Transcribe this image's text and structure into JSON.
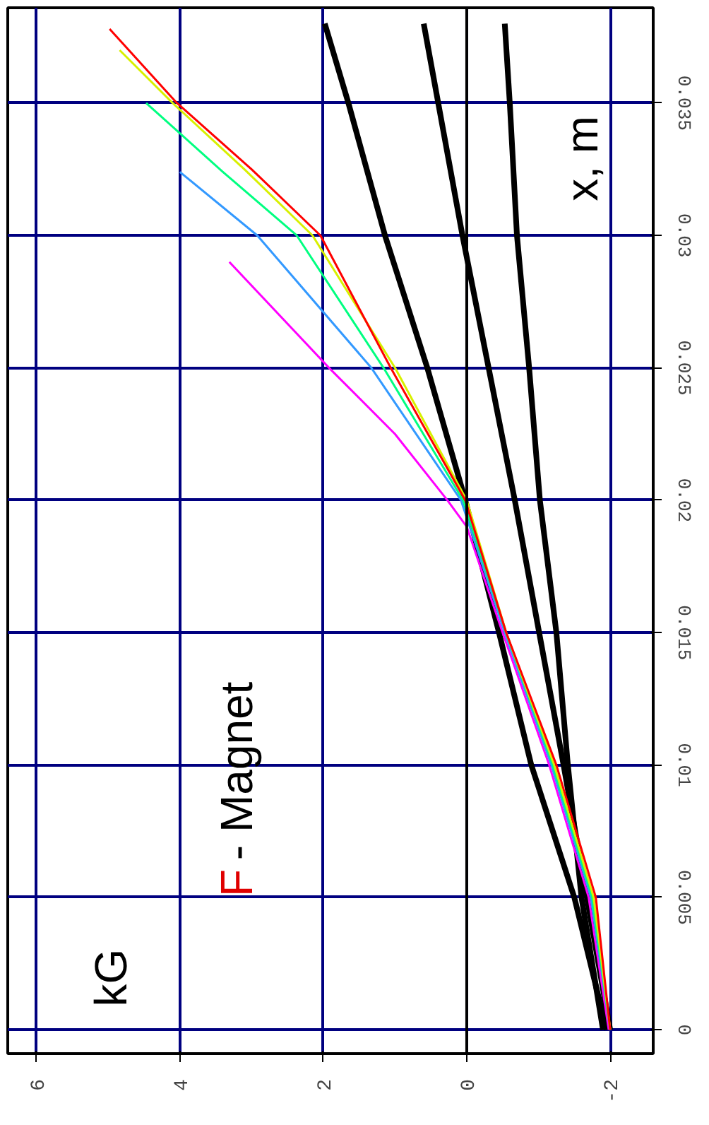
{
  "chart_data": {
    "type": "line",
    "ylabel": "x, m",
    "annotations": [
      "kG",
      "F - Magnet"
    ],
    "xlim": [
      6.4,
      -2.6
    ],
    "xticks": [
      -2,
      0,
      2,
      4,
      6
    ],
    "ylim": [
      -0.0009,
      0.0386
    ],
    "yticks": [
      0,
      0.005,
      0.01,
      0.015,
      0.02,
      0.025,
      0.03,
      0.035
    ],
    "grid": true,
    "marker": "none",
    "line_style": "solid",
    "ref_lines": [
      {
        "axis": "x",
        "value": 0,
        "label": null,
        "color": "#000000"
      }
    ],
    "series": [
      {
        "color": "#000000",
        "values": [
          0,
          0.005,
          0.01,
          0.015,
          0.02,
          0.025,
          0.03,
          0.035,
          0.038
        ],
        "x": [
          -1.95,
          -1.5,
          -0.9,
          -0.45,
          0.02,
          0.55,
          1.14,
          1.65,
          1.98
        ]
      },
      {
        "color": "#000000",
        "values": [
          0,
          0.01,
          0.02,
          0.03,
          0.038
        ],
        "x": [
          -2.0,
          -1.35,
          -0.67,
          0.06,
          0.6
        ]
      },
      {
        "color": "#000000",
        "values": [
          0,
          0.005,
          0.01,
          0.015,
          0.02,
          0.025,
          0.03,
          0.035,
          0.038
        ],
        "x": [
          -1.9,
          -1.6,
          -1.41,
          -1.25,
          -1.02,
          -0.87,
          -0.7,
          -0.6,
          -0.53
        ]
      },
      {
        "color": "#ff00ff",
        "values": [
          0,
          0.005,
          0.01,
          0.015,
          0.019,
          0.02,
          0.0225,
          0.025,
          0.029
        ],
        "x": [
          -1.98,
          -1.7,
          -1.15,
          -0.5,
          0.0,
          0.27,
          1.0,
          1.92,
          3.31
        ]
      },
      {
        "color": "#3399ff",
        "values": [
          0,
          0.005,
          0.01,
          0.015,
          0.02,
          0.025,
          0.03,
          0.0324
        ],
        "x": [
          -2.0,
          -1.73,
          -1.18,
          -0.53,
          0.08,
          1.33,
          2.92,
          4.0
        ]
      },
      {
        "color": "#00ff80",
        "values": [
          0,
          0.005,
          0.01,
          0.015,
          0.02,
          0.025,
          0.03,
          0.0324,
          0.035
        ],
        "x": [
          -2.0,
          -1.75,
          -1.2,
          -0.55,
          0.05,
          1.16,
          2.37,
          3.4,
          4.47
        ]
      },
      {
        "color": "#d8f000",
        "values": [
          0,
          0.005,
          0.01,
          0.015,
          0.02,
          0.025,
          0.03,
          0.0325,
          0.035,
          0.037
        ],
        "x": [
          -2.0,
          -1.77,
          -1.22,
          -0.55,
          0.0,
          1.0,
          2.15,
          3.1,
          4.1,
          4.84
        ]
      },
      {
        "color": "#ff0000",
        "values": [
          0,
          0.005,
          0.01,
          0.015,
          0.02,
          0.025,
          0.03,
          0.0325,
          0.035,
          0.0378
        ],
        "x": [
          -2.0,
          -1.8,
          -1.25,
          -0.55,
          0.02,
          1.06,
          2.04,
          3.0,
          4.04,
          4.98
        ]
      }
    ]
  }
}
